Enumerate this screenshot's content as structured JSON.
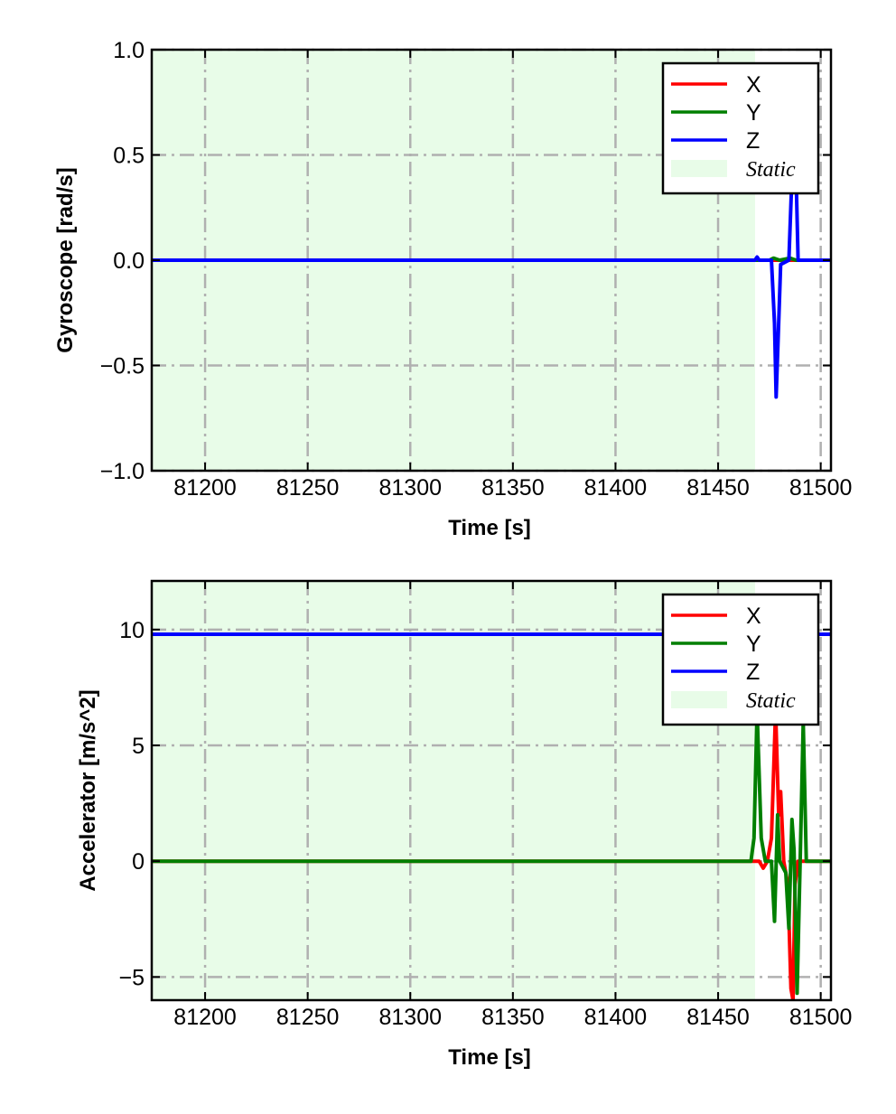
{
  "chart_data": [
    {
      "type": "line",
      "ylabel": "Gyroscope [rad/s]",
      "xlabel": "Time [s]",
      "xlim": [
        81174,
        81505
      ],
      "ylim": [
        -1.0,
        1.0
      ],
      "xticks": [
        81200,
        81250,
        81300,
        81350,
        81400,
        81450,
        81500
      ],
      "xtick_labels": [
        "81200",
        "81250",
        "81300",
        "81350",
        "81400",
        "81450",
        "81500"
      ],
      "yticks": [
        1.0,
        0.5,
        0.0,
        -0.5,
        -1.0
      ],
      "ytick_labels": [
        "1.0",
        "0.5",
        "0.0",
        "−0.5",
        "−1.0"
      ],
      "grid": true,
      "legend_position": "top-right",
      "static_span": [
        81174,
        81468
      ],
      "static_label": "Static",
      "static_color": "#e8fce8",
      "series": [
        {
          "name": "X",
          "color": "#ff0000",
          "points": [
            [
              81174,
              0
            ],
            [
              81505,
              0
            ]
          ]
        },
        {
          "name": "Y",
          "color": "#007f00",
          "points": [
            [
              81174,
              0
            ],
            [
              81475,
              0
            ],
            [
              81477,
              0.01
            ],
            [
              81480,
              0
            ],
            [
              81485,
              0.01
            ],
            [
              81488,
              0
            ],
            [
              81505,
              0
            ]
          ]
        },
        {
          "name": "Z",
          "color": "#0000ff",
          "points": [
            [
              81174,
              0
            ],
            [
              81468,
              0
            ],
            [
              81469,
              0.015
            ],
            [
              81470,
              0
            ],
            [
              81476,
              0
            ],
            [
              81477.5,
              -0.3
            ],
            [
              81478.3,
              -0.65
            ],
            [
              81479.5,
              -0.3
            ],
            [
              81480.5,
              -0.02
            ],
            [
              81484.5,
              0
            ],
            [
              81486,
              0.4
            ],
            [
              81487,
              0.8
            ],
            [
              81488,
              0.4
            ],
            [
              81489,
              0
            ],
            [
              81505,
              0
            ]
          ]
        }
      ]
    },
    {
      "type": "line",
      "ylabel": "Accelerator [m/s^2]",
      "xlabel": "Time [s]",
      "xlim": [
        81174,
        81505
      ],
      "ylim": [
        -6.0,
        12.1
      ],
      "xticks": [
        81200,
        81250,
        81300,
        81350,
        81400,
        81450,
        81500
      ],
      "xtick_labels": [
        "81200",
        "81250",
        "81300",
        "81350",
        "81400",
        "81450",
        "81500"
      ],
      "yticks": [
        10,
        5,
        0,
        -5
      ],
      "ytick_labels": [
        "10",
        "5",
        "0",
        "−5"
      ],
      "grid": true,
      "legend_position": "top-right",
      "static_span": [
        81174,
        81468
      ],
      "static_label": "Static",
      "static_color": "#e8fce8",
      "series": [
        {
          "name": "X",
          "color": "#ff0000",
          "points": [
            [
              81174,
              0
            ],
            [
              81470,
              0
            ],
            [
              81472,
              -0.3
            ],
            [
              81474,
              0
            ],
            [
              81476,
              1
            ],
            [
              81478,
              6.5
            ],
            [
              81479.5,
              2
            ],
            [
              81480.5,
              3
            ],
            [
              81482,
              0
            ],
            [
              81484,
              -1
            ],
            [
              81485.5,
              -5.5
            ],
            [
              81486.5,
              -6
            ],
            [
              81487.5,
              -1
            ],
            [
              81489,
              0
            ],
            [
              81505,
              0
            ]
          ]
        },
        {
          "name": "Y",
          "color": "#007f00",
          "points": [
            [
              81174,
              0
            ],
            [
              81466,
              0
            ],
            [
              81467.5,
              1
            ],
            [
              81469,
              6.5
            ],
            [
              81471,
              1
            ],
            [
              81473,
              0
            ],
            [
              81476,
              0
            ],
            [
              81477.5,
              -2.6
            ],
            [
              81479,
              2
            ],
            [
              81480,
              0
            ],
            [
              81483,
              -0.5
            ],
            [
              81484.5,
              -2.9
            ],
            [
              81486,
              1.8
            ],
            [
              81487,
              0.5
            ],
            [
              81488.5,
              -5.7
            ],
            [
              81490,
              0
            ],
            [
              81491.5,
              6
            ],
            [
              81493,
              0
            ],
            [
              81505,
              0
            ]
          ]
        },
        {
          "name": "Z",
          "color": "#0000ff",
          "points": [
            [
              81174,
              9.8
            ],
            [
              81505,
              9.8
            ]
          ]
        }
      ]
    }
  ]
}
